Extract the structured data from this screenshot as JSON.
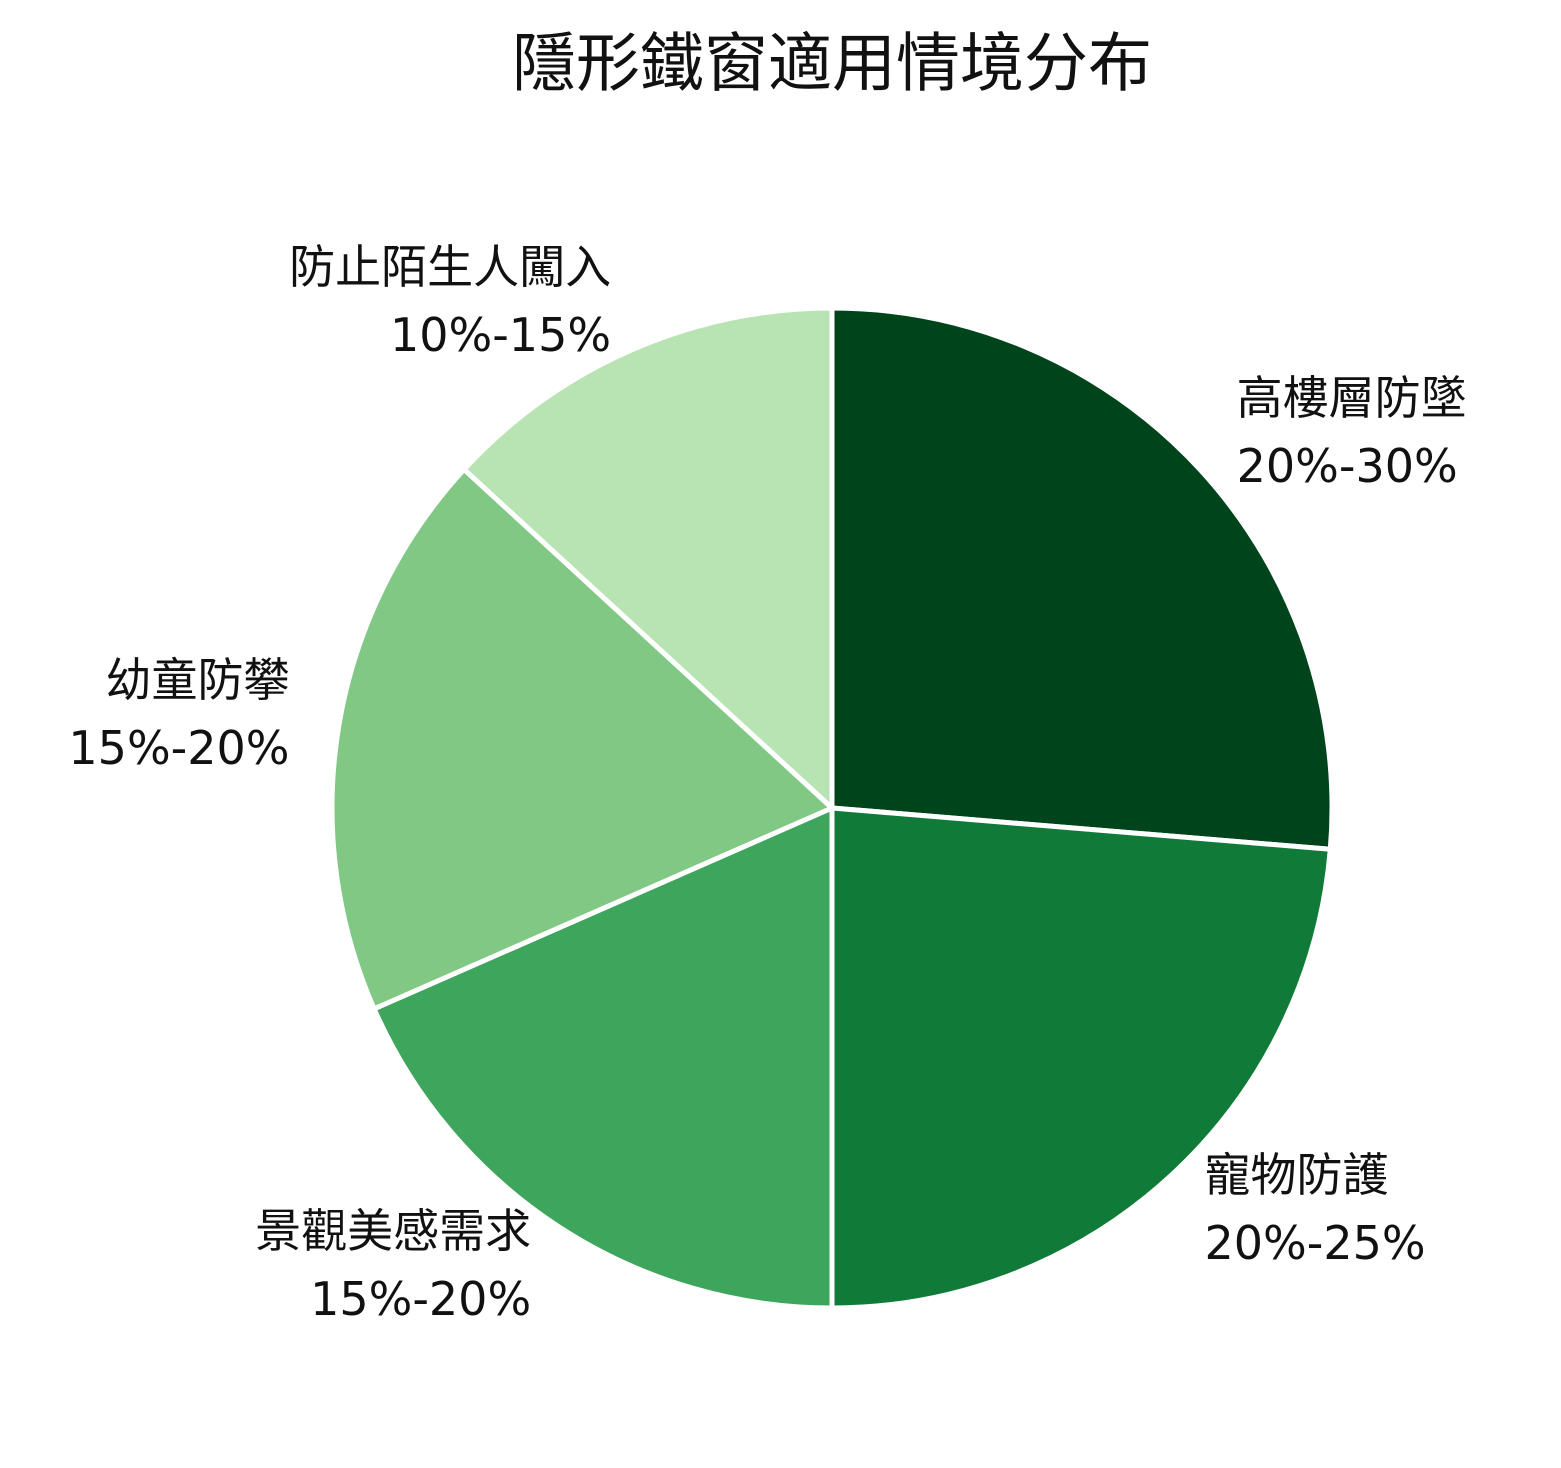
{
  "chart_data": {
    "type": "pie",
    "title": "隱形鐵窗適用情境分布",
    "categories": [
      "高樓層防墜",
      "寵物防護",
      "景觀美感需求",
      "幼童防攀",
      "防止陌生人闖入"
    ],
    "values": [
      25,
      22.5,
      17.5,
      17.5,
      12.5
    ],
    "value_labels": [
      "20%-30%",
      "20%-25%",
      "15%-20%",
      "15%-20%",
      "10%-15%"
    ],
    "colors": [
      "#00441b",
      "#107a38",
      "#3ea55c",
      "#80c883",
      "#b8e3b3"
    ]
  }
}
